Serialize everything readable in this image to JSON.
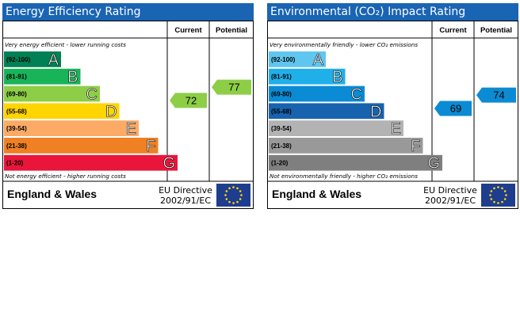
{
  "chart_data": [
    {
      "type": "bar",
      "title": "Energy Efficiency Rating",
      "columns": [
        "Current",
        "Potential"
      ],
      "top_note": "Very energy efficient - lower running costs",
      "bottom_note": "Not energy efficient - higher running costs",
      "bands": [
        {
          "range": "(92-100)",
          "letter": "A",
          "color": "#008054"
        },
        {
          "range": "(81-91)",
          "letter": "B",
          "color": "#19b459"
        },
        {
          "range": "(69-80)",
          "letter": "C",
          "color": "#8dce46"
        },
        {
          "range": "(55-68)",
          "letter": "D",
          "color": "#ffd500"
        },
        {
          "range": "(39-54)",
          "letter": "E",
          "color": "#fcaa65"
        },
        {
          "range": "(21-38)",
          "letter": "F",
          "color": "#ef8023"
        },
        {
          "range": "(1-20)",
          "letter": "G",
          "color": "#e9153b"
        }
      ],
      "current": {
        "value": 72,
        "band": "C"
      },
      "potential": {
        "value": 77,
        "band": "C"
      },
      "marker_color": "#8dce46",
      "region": "England & Wales",
      "directive_line1": "EU Directive",
      "directive_line2": "2002/91/EC"
    },
    {
      "type": "bar",
      "title": "Environmental (CO₂) Impact Rating",
      "columns": [
        "Current",
        "Potential"
      ],
      "top_note": "Very environmentally friendly - lower CO₂ emissions",
      "bottom_note": "Not environmentally friendly - higher CO₂ emissions",
      "bands": [
        {
          "range": "(92-100)",
          "letter": "A",
          "color": "#5fc6f0"
        },
        {
          "range": "(81-91)",
          "letter": "B",
          "color": "#1fb0ea"
        },
        {
          "range": "(69-80)",
          "letter": "C",
          "color": "#0b8bd3"
        },
        {
          "range": "(55-68)",
          "letter": "D",
          "color": "#1763ae"
        },
        {
          "range": "(39-54)",
          "letter": "E",
          "color": "#b3b3b3"
        },
        {
          "range": "(21-38)",
          "letter": "F",
          "color": "#999999"
        },
        {
          "range": "(1-20)",
          "letter": "G",
          "color": "#7f7f7f"
        }
      ],
      "current": {
        "value": 69,
        "band": "C"
      },
      "potential": {
        "value": 74,
        "band": "C"
      },
      "marker_color": "#0b8bd3",
      "region": "England & Wales",
      "directive_line1": "EU Directive",
      "directive_line2": "2002/91/EC"
    }
  ]
}
